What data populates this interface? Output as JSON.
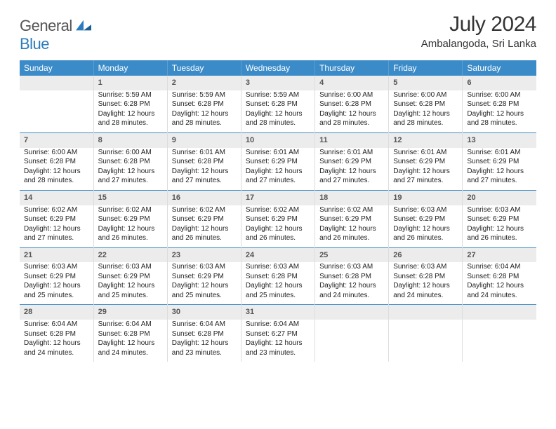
{
  "logo": {
    "general": "General",
    "blue": "Blue",
    "brand_color": "#2b7bbd",
    "text_color": "#555"
  },
  "title": {
    "month": "July 2024",
    "location": "Ambalangoda, Sri Lanka"
  },
  "colors": {
    "header_bg": "#3b8bc8",
    "header_text": "#ffffff",
    "daynum_bg": "#ececec",
    "daynum_color": "#555555",
    "week_sep": "#3b8bc8",
    "cell_border": "#dddddd"
  },
  "calendar": {
    "type": "table",
    "columns": [
      "Sunday",
      "Monday",
      "Tuesday",
      "Wednesday",
      "Thursday",
      "Friday",
      "Saturday"
    ],
    "weeks": [
      [
        null,
        {
          "n": "1",
          "sr": "Sunrise: 5:59 AM",
          "ss": "Sunset: 6:28 PM",
          "d1": "Daylight: 12 hours",
          "d2": "and 28 minutes."
        },
        {
          "n": "2",
          "sr": "Sunrise: 5:59 AM",
          "ss": "Sunset: 6:28 PM",
          "d1": "Daylight: 12 hours",
          "d2": "and 28 minutes."
        },
        {
          "n": "3",
          "sr": "Sunrise: 5:59 AM",
          "ss": "Sunset: 6:28 PM",
          "d1": "Daylight: 12 hours",
          "d2": "and 28 minutes."
        },
        {
          "n": "4",
          "sr": "Sunrise: 6:00 AM",
          "ss": "Sunset: 6:28 PM",
          "d1": "Daylight: 12 hours",
          "d2": "and 28 minutes."
        },
        {
          "n": "5",
          "sr": "Sunrise: 6:00 AM",
          "ss": "Sunset: 6:28 PM",
          "d1": "Daylight: 12 hours",
          "d2": "and 28 minutes."
        },
        {
          "n": "6",
          "sr": "Sunrise: 6:00 AM",
          "ss": "Sunset: 6:28 PM",
          "d1": "Daylight: 12 hours",
          "d2": "and 28 minutes."
        }
      ],
      [
        {
          "n": "7",
          "sr": "Sunrise: 6:00 AM",
          "ss": "Sunset: 6:28 PM",
          "d1": "Daylight: 12 hours",
          "d2": "and 28 minutes."
        },
        {
          "n": "8",
          "sr": "Sunrise: 6:00 AM",
          "ss": "Sunset: 6:28 PM",
          "d1": "Daylight: 12 hours",
          "d2": "and 27 minutes."
        },
        {
          "n": "9",
          "sr": "Sunrise: 6:01 AM",
          "ss": "Sunset: 6:28 PM",
          "d1": "Daylight: 12 hours",
          "d2": "and 27 minutes."
        },
        {
          "n": "10",
          "sr": "Sunrise: 6:01 AM",
          "ss": "Sunset: 6:29 PM",
          "d1": "Daylight: 12 hours",
          "d2": "and 27 minutes."
        },
        {
          "n": "11",
          "sr": "Sunrise: 6:01 AM",
          "ss": "Sunset: 6:29 PM",
          "d1": "Daylight: 12 hours",
          "d2": "and 27 minutes."
        },
        {
          "n": "12",
          "sr": "Sunrise: 6:01 AM",
          "ss": "Sunset: 6:29 PM",
          "d1": "Daylight: 12 hours",
          "d2": "and 27 minutes."
        },
        {
          "n": "13",
          "sr": "Sunrise: 6:01 AM",
          "ss": "Sunset: 6:29 PM",
          "d1": "Daylight: 12 hours",
          "d2": "and 27 minutes."
        }
      ],
      [
        {
          "n": "14",
          "sr": "Sunrise: 6:02 AM",
          "ss": "Sunset: 6:29 PM",
          "d1": "Daylight: 12 hours",
          "d2": "and 27 minutes."
        },
        {
          "n": "15",
          "sr": "Sunrise: 6:02 AM",
          "ss": "Sunset: 6:29 PM",
          "d1": "Daylight: 12 hours",
          "d2": "and 26 minutes."
        },
        {
          "n": "16",
          "sr": "Sunrise: 6:02 AM",
          "ss": "Sunset: 6:29 PM",
          "d1": "Daylight: 12 hours",
          "d2": "and 26 minutes."
        },
        {
          "n": "17",
          "sr": "Sunrise: 6:02 AM",
          "ss": "Sunset: 6:29 PM",
          "d1": "Daylight: 12 hours",
          "d2": "and 26 minutes."
        },
        {
          "n": "18",
          "sr": "Sunrise: 6:02 AM",
          "ss": "Sunset: 6:29 PM",
          "d1": "Daylight: 12 hours",
          "d2": "and 26 minutes."
        },
        {
          "n": "19",
          "sr": "Sunrise: 6:03 AM",
          "ss": "Sunset: 6:29 PM",
          "d1": "Daylight: 12 hours",
          "d2": "and 26 minutes."
        },
        {
          "n": "20",
          "sr": "Sunrise: 6:03 AM",
          "ss": "Sunset: 6:29 PM",
          "d1": "Daylight: 12 hours",
          "d2": "and 26 minutes."
        }
      ],
      [
        {
          "n": "21",
          "sr": "Sunrise: 6:03 AM",
          "ss": "Sunset: 6:29 PM",
          "d1": "Daylight: 12 hours",
          "d2": "and 25 minutes."
        },
        {
          "n": "22",
          "sr": "Sunrise: 6:03 AM",
          "ss": "Sunset: 6:29 PM",
          "d1": "Daylight: 12 hours",
          "d2": "and 25 minutes."
        },
        {
          "n": "23",
          "sr": "Sunrise: 6:03 AM",
          "ss": "Sunset: 6:29 PM",
          "d1": "Daylight: 12 hours",
          "d2": "and 25 minutes."
        },
        {
          "n": "24",
          "sr": "Sunrise: 6:03 AM",
          "ss": "Sunset: 6:28 PM",
          "d1": "Daylight: 12 hours",
          "d2": "and 25 minutes."
        },
        {
          "n": "25",
          "sr": "Sunrise: 6:03 AM",
          "ss": "Sunset: 6:28 PM",
          "d1": "Daylight: 12 hours",
          "d2": "and 24 minutes."
        },
        {
          "n": "26",
          "sr": "Sunrise: 6:03 AM",
          "ss": "Sunset: 6:28 PM",
          "d1": "Daylight: 12 hours",
          "d2": "and 24 minutes."
        },
        {
          "n": "27",
          "sr": "Sunrise: 6:04 AM",
          "ss": "Sunset: 6:28 PM",
          "d1": "Daylight: 12 hours",
          "d2": "and 24 minutes."
        }
      ],
      [
        {
          "n": "28",
          "sr": "Sunrise: 6:04 AM",
          "ss": "Sunset: 6:28 PM",
          "d1": "Daylight: 12 hours",
          "d2": "and 24 minutes."
        },
        {
          "n": "29",
          "sr": "Sunrise: 6:04 AM",
          "ss": "Sunset: 6:28 PM",
          "d1": "Daylight: 12 hours",
          "d2": "and 24 minutes."
        },
        {
          "n": "30",
          "sr": "Sunrise: 6:04 AM",
          "ss": "Sunset: 6:28 PM",
          "d1": "Daylight: 12 hours",
          "d2": "and 23 minutes."
        },
        {
          "n": "31",
          "sr": "Sunrise: 6:04 AM",
          "ss": "Sunset: 6:27 PM",
          "d1": "Daylight: 12 hours",
          "d2": "and 23 minutes."
        },
        null,
        null,
        null
      ]
    ]
  }
}
